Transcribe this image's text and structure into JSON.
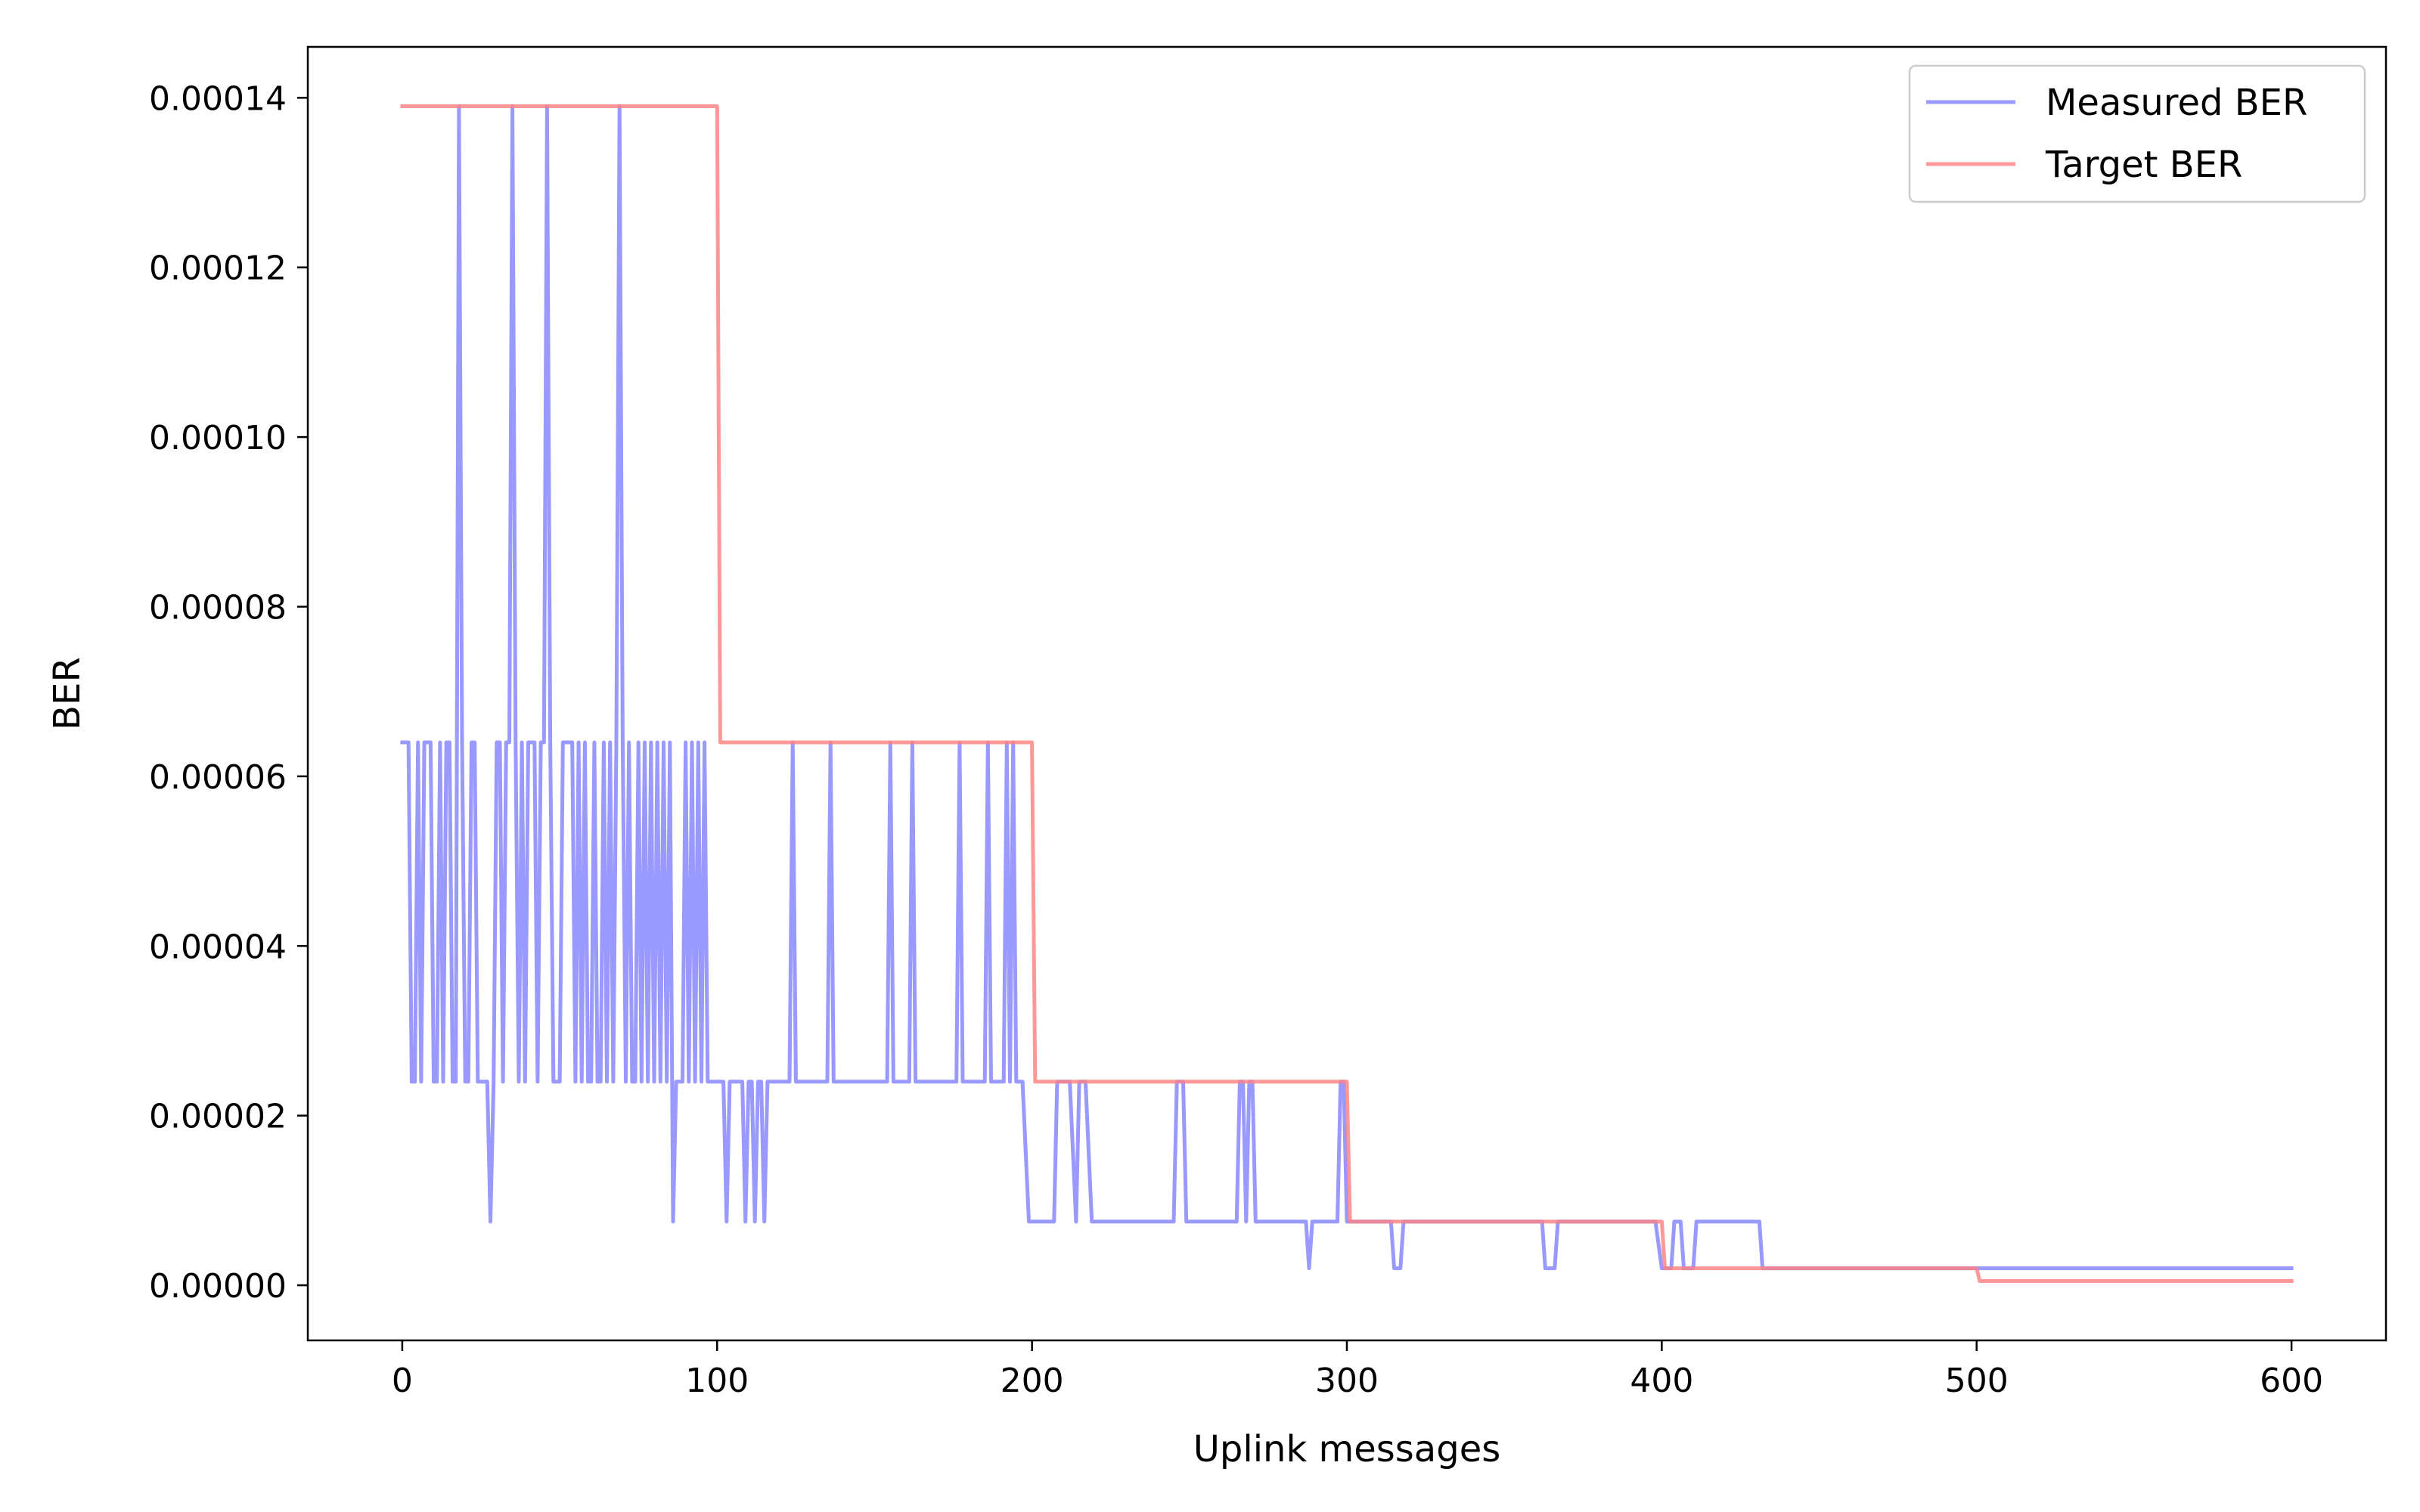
{
  "chart_data": {
    "type": "line",
    "xlabel": "Uplink messages",
    "ylabel": "BER",
    "xlim": [
      -30,
      630
    ],
    "ylim": [
      -6.5e-06,
      0.000146
    ],
    "x_ticks": [
      0,
      100,
      200,
      300,
      400,
      500,
      600
    ],
    "x_tick_labels": [
      "0",
      "100",
      "200",
      "300",
      "400",
      "500",
      "600"
    ],
    "y_ticks": [
      0,
      2e-05,
      4e-05,
      6e-05,
      8e-05,
      0.0001,
      0.00012,
      0.00014
    ],
    "y_tick_labels": [
      "0.00000",
      "0.00002",
      "0.00004",
      "0.00006",
      "0.00008",
      "0.00010",
      "0.00012",
      "0.00014"
    ],
    "grid": false,
    "legend_position": "top-right",
    "series": [
      {
        "name": "Measured BER",
        "color": "#8080ff",
        "points": [
          [
            0,
            6.4e-05
          ],
          [
            1,
            6.4e-05
          ],
          [
            2,
            6.4e-05
          ],
          [
            3,
            2.4e-05
          ],
          [
            4,
            2.4e-05
          ],
          [
            5,
            6.4e-05
          ],
          [
            6,
            2.4e-05
          ],
          [
            7,
            6.4e-05
          ],
          [
            8,
            6.4e-05
          ],
          [
            9,
            6.4e-05
          ],
          [
            10,
            2.4e-05
          ],
          [
            11,
            2.4e-05
          ],
          [
            12,
            6.4e-05
          ],
          [
            13,
            2.4e-05
          ],
          [
            14,
            6.4e-05
          ],
          [
            15,
            6.4e-05
          ],
          [
            16,
            2.4e-05
          ],
          [
            17,
            2.4e-05
          ],
          [
            18,
            0.000139
          ],
          [
            19,
            6.4e-05
          ],
          [
            20,
            2.4e-05
          ],
          [
            21,
            2.4e-05
          ],
          [
            22,
            6.4e-05
          ],
          [
            23,
            6.4e-05
          ],
          [
            24,
            2.4e-05
          ],
          [
            25,
            2.4e-05
          ],
          [
            26,
            2.4e-05
          ],
          [
            27,
            2.4e-05
          ],
          [
            28,
            7.5e-06
          ],
          [
            29,
            2.4e-05
          ],
          [
            30,
            6.4e-05
          ],
          [
            31,
            6.4e-05
          ],
          [
            32,
            2.4e-05
          ],
          [
            33,
            6.4e-05
          ],
          [
            34,
            6.4e-05
          ],
          [
            35,
            0.000139
          ],
          [
            36,
            6.4e-05
          ],
          [
            37,
            2.4e-05
          ],
          [
            38,
            6.4e-05
          ],
          [
            39,
            2.4e-05
          ],
          [
            40,
            6.4e-05
          ],
          [
            41,
            6.4e-05
          ],
          [
            42,
            6.4e-05
          ],
          [
            43,
            2.4e-05
          ],
          [
            44,
            6.4e-05
          ],
          [
            45,
            6.4e-05
          ],
          [
            46,
            0.000139
          ],
          [
            47,
            6.4e-05
          ],
          [
            48,
            2.4e-05
          ],
          [
            49,
            2.4e-05
          ],
          [
            50,
            2.4e-05
          ],
          [
            51,
            6.4e-05
          ],
          [
            52,
            6.4e-05
          ],
          [
            53,
            6.4e-05
          ],
          [
            54,
            6.4e-05
          ],
          [
            55,
            2.4e-05
          ],
          [
            56,
            6.4e-05
          ],
          [
            57,
            2.4e-05
          ],
          [
            58,
            6.4e-05
          ],
          [
            59,
            2.4e-05
          ],
          [
            60,
            2.4e-05
          ],
          [
            61,
            6.4e-05
          ],
          [
            62,
            2.4e-05
          ],
          [
            63,
            2.4e-05
          ],
          [
            64,
            6.4e-05
          ],
          [
            65,
            2.4e-05
          ],
          [
            66,
            6.4e-05
          ],
          [
            67,
            2.4e-05
          ],
          [
            68,
            6.4e-05
          ],
          [
            69,
            0.000139
          ],
          [
            70,
            6.4e-05
          ],
          [
            71,
            2.4e-05
          ],
          [
            72,
            6.4e-05
          ],
          [
            73,
            2.4e-05
          ],
          [
            74,
            2.4e-05
          ],
          [
            75,
            6.4e-05
          ],
          [
            76,
            2.4e-05
          ],
          [
            77,
            6.4e-05
          ],
          [
            78,
            2.4e-05
          ],
          [
            79,
            6.4e-05
          ],
          [
            80,
            2.4e-05
          ],
          [
            81,
            6.4e-05
          ],
          [
            82,
            2.4e-05
          ],
          [
            83,
            6.4e-05
          ],
          [
            84,
            2.4e-05
          ],
          [
            85,
            6.4e-05
          ],
          [
            86,
            7.5e-06
          ],
          [
            87,
            2.4e-05
          ],
          [
            88,
            2.4e-05
          ],
          [
            89,
            2.4e-05
          ],
          [
            90,
            6.4e-05
          ],
          [
            91,
            2.4e-05
          ],
          [
            92,
            6.4e-05
          ],
          [
            93,
            2.4e-05
          ],
          [
            94,
            6.4e-05
          ],
          [
            95,
            2.4e-05
          ],
          [
            96,
            6.4e-05
          ],
          [
            97,
            2.4e-05
          ],
          [
            98,
            2.4e-05
          ],
          [
            99,
            2.4e-05
          ],
          [
            100,
            2.4e-05
          ],
          [
            101,
            2.4e-05
          ],
          [
            102,
            2.4e-05
          ],
          [
            103,
            7.5e-06
          ],
          [
            104,
            2.4e-05
          ],
          [
            105,
            2.4e-05
          ],
          [
            106,
            2.4e-05
          ],
          [
            107,
            2.4e-05
          ],
          [
            108,
            2.4e-05
          ],
          [
            109,
            7.5e-06
          ],
          [
            110,
            2.4e-05
          ],
          [
            111,
            2.4e-05
          ],
          [
            112,
            7.5e-06
          ],
          [
            113,
            2.4e-05
          ],
          [
            114,
            2.4e-05
          ],
          [
            115,
            7.5e-06
          ],
          [
            116,
            2.4e-05
          ],
          [
            117,
            2.4e-05
          ],
          [
            123,
            2.4e-05
          ],
          [
            124,
            6.4e-05
          ],
          [
            125,
            2.4e-05
          ],
          [
            135,
            2.4e-05
          ],
          [
            136,
            6.4e-05
          ],
          [
            137,
            2.4e-05
          ],
          [
            154,
            2.4e-05
          ],
          [
            155,
            6.4e-05
          ],
          [
            156,
            2.4e-05
          ],
          [
            161,
            2.4e-05
          ],
          [
            162,
            6.4e-05
          ],
          [
            163,
            2.4e-05
          ],
          [
            176,
            2.4e-05
          ],
          [
            177,
            6.4e-05
          ],
          [
            178,
            2.4e-05
          ],
          [
            185,
            2.4e-05
          ],
          [
            186,
            6.4e-05
          ],
          [
            187,
            2.4e-05
          ],
          [
            191,
            2.4e-05
          ],
          [
            192,
            6.4e-05
          ],
          [
            193,
            2.4e-05
          ],
          [
            194,
            6.4e-05
          ],
          [
            195,
            2.4e-05
          ],
          [
            197,
            2.4e-05
          ],
          [
            199,
            7.5e-06
          ],
          [
            207,
            7.5e-06
          ],
          [
            208,
            2.4e-05
          ],
          [
            212,
            2.4e-05
          ],
          [
            214,
            7.5e-06
          ],
          [
            215,
            2.4e-05
          ],
          [
            217,
            2.4e-05
          ],
          [
            219,
            7.5e-06
          ],
          [
            245,
            7.5e-06
          ],
          [
            246,
            2.4e-05
          ],
          [
            248,
            2.4e-05
          ],
          [
            249,
            7.5e-06
          ],
          [
            265,
            7.5e-06
          ],
          [
            266,
            2.4e-05
          ],
          [
            267,
            2.4e-05
          ],
          [
            268,
            7.5e-06
          ],
          [
            269,
            2.4e-05
          ],
          [
            270,
            2.4e-05
          ],
          [
            271,
            7.5e-06
          ],
          [
            287,
            7.5e-06
          ],
          [
            288,
            2e-06
          ],
          [
            289,
            7.5e-06
          ],
          [
            296,
            7.5e-06
          ],
          [
            297,
            7.5e-06
          ],
          [
            298,
            2.4e-05
          ],
          [
            299,
            2.4e-05
          ],
          [
            300,
            7.5e-06
          ],
          [
            314,
            7.5e-06
          ],
          [
            315,
            2e-06
          ],
          [
            317,
            2e-06
          ],
          [
            318,
            7.5e-06
          ],
          [
            362,
            7.5e-06
          ],
          [
            363,
            2e-06
          ],
          [
            366,
            2e-06
          ],
          [
            367,
            7.5e-06
          ],
          [
            398,
            7.5e-06
          ],
          [
            400,
            2e-06
          ],
          [
            403,
            2e-06
          ],
          [
            404,
            7.5e-06
          ],
          [
            406,
            7.5e-06
          ],
          [
            407,
            2e-06
          ],
          [
            410,
            2e-06
          ],
          [
            411,
            7.5e-06
          ],
          [
            431,
            7.5e-06
          ],
          [
            432,
            2e-06
          ],
          [
            600,
            2e-06
          ]
        ]
      },
      {
        "name": "Target BER",
        "color": "#ff8080",
        "points": [
          [
            0,
            0.000139
          ],
          [
            100,
            0.000139
          ],
          [
            101,
            6.4e-05
          ],
          [
            200,
            6.4e-05
          ],
          [
            201,
            2.4e-05
          ],
          [
            300,
            2.4e-05
          ],
          [
            301,
            7.5e-06
          ],
          [
            400,
            7.5e-06
          ],
          [
            401,
            2e-06
          ],
          [
            500,
            2e-06
          ],
          [
            501,
            5e-07
          ],
          [
            600,
            5e-07
          ]
        ]
      }
    ]
  }
}
